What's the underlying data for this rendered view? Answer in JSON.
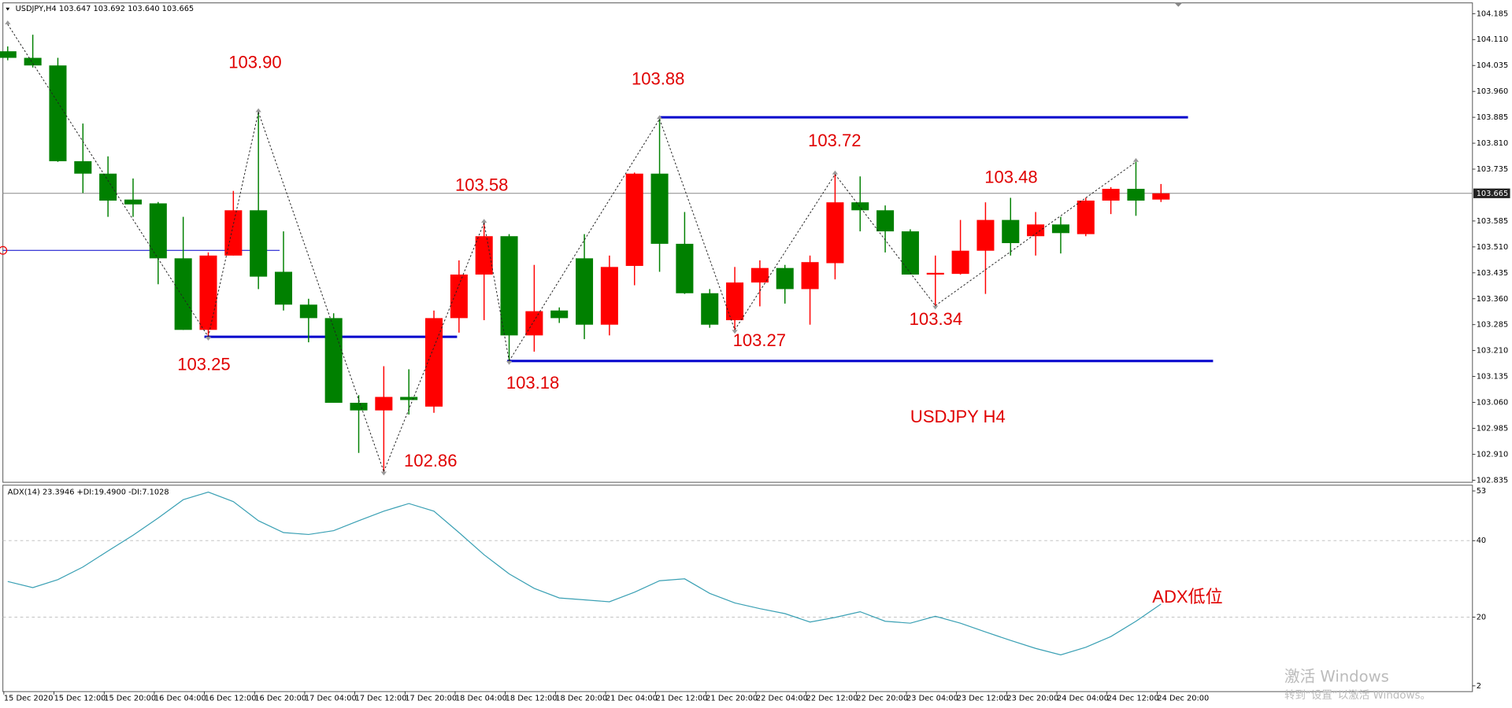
{
  "chart_data": [
    {
      "type": "candlestick",
      "title": "USDJPY,H4  103.647 103.692 103.640 103.665",
      "categories": [
        "15 Dec 2020",
        null,
        "15 Dec 12:00",
        null,
        "15 Dec 20:00",
        null,
        "16 Dec 04:00",
        null,
        "16 Dec 12:00",
        null,
        "16 Dec 20:00",
        null,
        "17 Dec 04:00",
        null,
        "17 Dec 12:00",
        null,
        "17 Dec 20:00",
        null,
        "18 Dec 04:00",
        null,
        "18 Dec 12:00",
        null,
        "18 Dec 20:00",
        null,
        "21 Dec 04:00",
        null,
        "21 Dec 12:00",
        null,
        "21 Dec 20:00",
        null,
        "22 Dec 04:00",
        null,
        "22 Dec 12:00",
        null,
        "22 Dec 20:00",
        null,
        "23 Dec 04:00",
        null,
        "23 Dec 12:00",
        null,
        "23 Dec 20:00",
        null,
        "24 Dec 04:00",
        null,
        "24 Dec 12:00",
        null,
        "24 Dec 20:00"
      ],
      "open": [
        104.076,
        104.057,
        104.035,
        103.758,
        103.722,
        103.647,
        103.636,
        103.477,
        103.27,
        103.485,
        103.616,
        103.438,
        103.343,
        103.304,
        103.059,
        103.037,
        103.076,
        103.048,
        103.304,
        103.43,
        103.541,
        103.254,
        103.326,
        103.477,
        103.285,
        103.455,
        103.722,
        103.519,
        103.376,
        103.298,
        103.407,
        103.449,
        103.388,
        103.463,
        103.639,
        103.616,
        103.555,
        103.43,
        103.432,
        103.499,
        103.588,
        103.541,
        103.575,
        103.547,
        103.644,
        103.678,
        103.647
      ],
      "high": [
        104.09,
        104.124,
        104.057,
        103.867,
        103.772,
        103.708,
        103.64,
        103.597,
        103.494,
        103.672,
        103.9,
        103.555,
        103.36,
        103.318,
        103.081,
        103.165,
        103.156,
        103.326,
        103.471,
        103.58,
        103.547,
        103.458,
        103.335,
        103.547,
        103.485,
        103.725,
        103.88,
        103.611,
        103.388,
        103.452,
        103.471,
        103.458,
        103.485,
        103.72,
        103.714,
        103.63,
        103.561,
        103.485,
        103.588,
        103.639,
        103.652,
        103.611,
        103.597,
        103.652,
        103.683,
        103.756,
        103.692
      ],
      "low": [
        104.05,
        104.029,
        103.756,
        103.666,
        103.597,
        103.597,
        103.402,
        103.27,
        103.25,
        103.485,
        103.388,
        103.326,
        103.234,
        103.059,
        102.914,
        102.86,
        103.025,
        103.03,
        103.262,
        103.298,
        103.18,
        103.207,
        103.29,
        103.243,
        103.254,
        103.399,
        103.438,
        103.374,
        103.276,
        103.27,
        103.338,
        103.346,
        103.285,
        103.416,
        103.555,
        103.494,
        103.43,
        103.34,
        103.43,
        103.374,
        103.485,
        103.485,
        103.491,
        103.541,
        103.605,
        103.6,
        103.64
      ],
      "close": [
        104.057,
        104.035,
        103.758,
        103.722,
        103.644,
        103.633,
        103.477,
        103.27,
        103.485,
        103.616,
        103.424,
        103.343,
        103.304,
        103.059,
        103.037,
        103.076,
        103.067,
        103.304,
        103.43,
        103.541,
        103.254,
        103.324,
        103.304,
        103.285,
        103.452,
        103.722,
        103.519,
        103.376,
        103.285,
        103.407,
        103.449,
        103.388,
        103.466,
        103.639,
        103.616,
        103.555,
        103.43,
        103.435,
        103.499,
        103.588,
        103.521,
        103.575,
        103.55,
        103.644,
        103.678,
        103.644,
        103.665
      ],
      "up_color": "#ff0000",
      "down_color": "#008000",
      "zigzag": [
        104.154,
        null,
        null,
        null,
        null,
        null,
        null,
        null,
        103.25,
        null,
        103.9,
        null,
        null,
        null,
        null,
        102.86,
        null,
        null,
        null,
        103.58,
        103.18,
        null,
        null,
        null,
        null,
        null,
        103.88,
        null,
        null,
        103.27,
        null,
        null,
        null,
        103.72,
        null,
        null,
        null,
        103.34,
        null,
        null,
        null,
        null,
        null,
        null,
        null,
        103.756,
        null
      ],
      "hlines": [
        103.25,
        103.18,
        103.885,
        103.5
      ],
      "hline_color": "#0000cc",
      "last_price": 103.665,
      "ylim": [
        102.829,
        104.216
      ],
      "yticks": [
        104.185,
        {
          "value": 104.11,
          "label": "104.110"
        },
        104.035,
        {
          "value": 103.96,
          "label": "103.960"
        },
        103.885,
        {
          "value": 103.81,
          "label": "103.810"
        },
        103.735,
        103.585,
        {
          "value": 103.51,
          "label": "103.510"
        },
        103.435,
        {
          "value": 103.36,
          "label": "103.360"
        },
        103.285,
        {
          "value": 103.21,
          "label": "103.210"
        },
        103.135,
        {
          "value": 103.06,
          "label": "103.060"
        },
        102.985,
        {
          "value": 102.91,
          "label": "102.910"
        },
        102.835
      ],
      "annotations": [
        "103.90",
        "103.25",
        "103.58",
        "103.18",
        "102.86",
        "103.88",
        "103.27",
        "103.72",
        "103.34",
        "103.48",
        "USDJPY H4"
      ]
    },
    {
      "type": "line",
      "title": "ADX(14) 23.3946 +DI:19.4900 -DI:7.1028",
      "color": "#3aa0b4",
      "values": [
        29.3,
        27.7,
        29.8,
        33.1,
        37.3,
        41.4,
        45.9,
        50.7,
        52.7,
        50.2,
        45.2,
        42.1,
        41.6,
        42.6,
        45.2,
        47.7,
        49.7,
        47.7,
        42.1,
        36.3,
        31.3,
        27.5,
        25.0,
        24.5,
        24.0,
        26.5,
        29.5,
        30.0,
        26.2,
        23.7,
        22.2,
        20.9,
        18.7,
        19.9,
        21.4,
        18.9,
        18.4,
        20.2,
        18.4,
        16.1,
        13.9,
        11.8,
        10.1,
        12.1,
        14.9,
        18.9,
        23.4
      ],
      "ylim": [
        0.5,
        54.5
      ],
      "yticks": [
        53,
        40,
        20,
        2
      ],
      "grid": true,
      "annotations": [
        "ADX低位"
      ]
    }
  ],
  "watermark": [
    "激活 Windows",
    "转到“设置”以激活 Windows。"
  ]
}
